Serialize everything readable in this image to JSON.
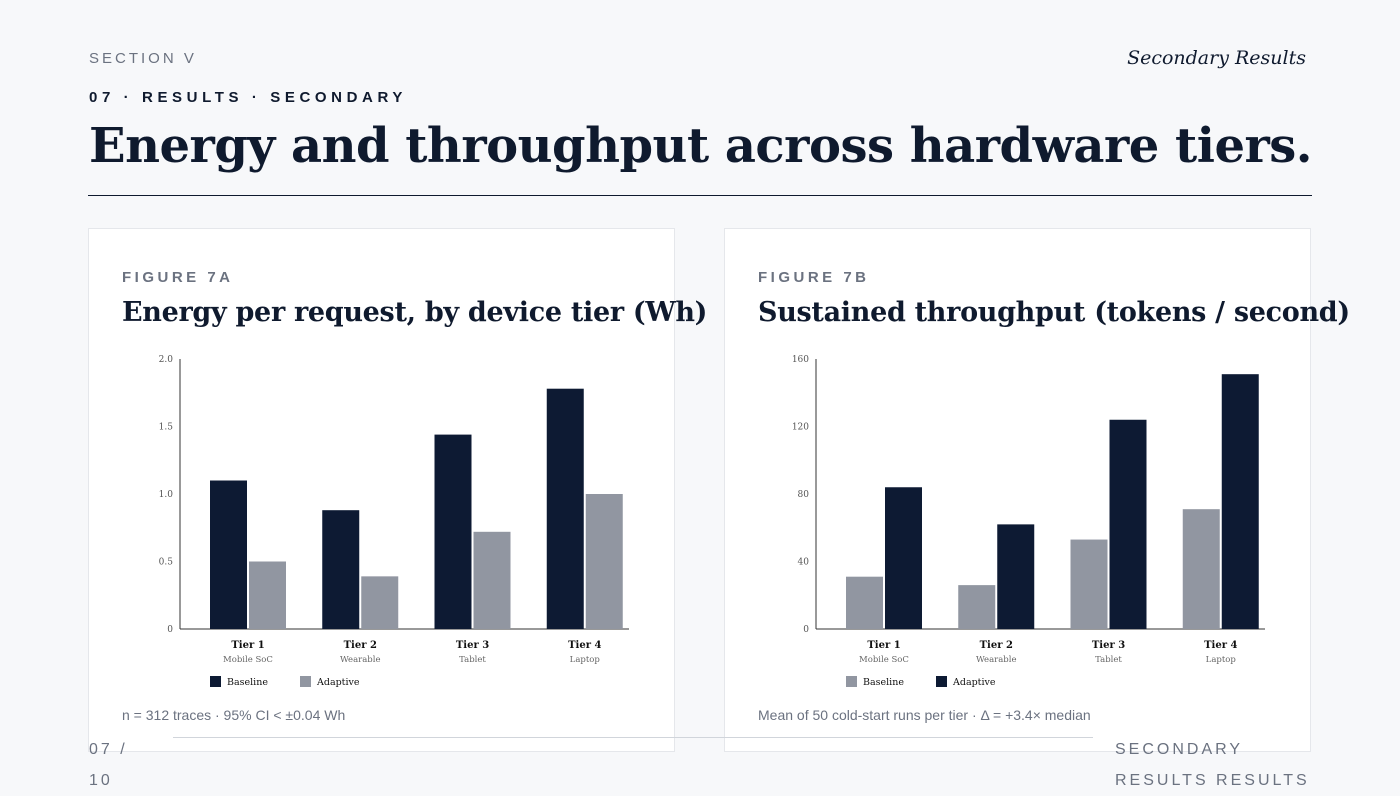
{
  "header": {
    "section": "SECTION V",
    "right": "Secondary Results",
    "kicker": "07 · RESULTS · SECONDARY",
    "title": "Energy and throughput across hardware tiers."
  },
  "colors": {
    "dark": "#0d1a33",
    "gray": "#9196a1"
  },
  "figure_a": {
    "label": "FIGURE 7A",
    "title": "Energy per request, by device tier (Wh)",
    "note": "n = 312 traces · 95% CI < ±0.04 Wh"
  },
  "figure_b": {
    "label": "FIGURE 7B",
    "title": "Sustained throughput (tokens / second)",
    "note": "Mean of 50 cold-start runs per tier · Δ = +3.4× median"
  },
  "footer": {
    "page": "07 / 10",
    "right": "SECONDARY RESULTS RESULTS"
  },
  "chart_data": [
    {
      "type": "bar",
      "title": "Energy per request, by device tier (Wh)",
      "categories": [
        "Tier 1",
        "Tier 2",
        "Tier 3",
        "Tier 4"
      ],
      "subcategories": [
        "Mobile SoC",
        "Wearable",
        "Tablet",
        "Laptop"
      ],
      "series": [
        {
          "name": "Baseline",
          "color": "#0d1a33",
          "values": [
            1.1,
            0.88,
            1.44,
            1.78
          ]
        },
        {
          "name": "Adaptive",
          "color": "#9196a1",
          "values": [
            0.5,
            0.39,
            0.72,
            1.0
          ]
        }
      ],
      "ylim": [
        0,
        2.0
      ],
      "yticks": [
        "0",
        "0.5",
        "1.0",
        "1.5",
        "2.0"
      ],
      "ytick_values": [
        0,
        0.5,
        1.0,
        1.5,
        2.0
      ],
      "legend": "bottom-left",
      "grid": false
    },
    {
      "type": "bar",
      "title": "Sustained throughput (tokens / second)",
      "categories": [
        "Tier 1",
        "Tier 2",
        "Tier 3",
        "Tier 4"
      ],
      "subcategories": [
        "Mobile SoC",
        "Wearable",
        "Tablet",
        "Laptop"
      ],
      "series": [
        {
          "name": "Baseline",
          "color": "#9196a1",
          "values": [
            31,
            26,
            53,
            71
          ]
        },
        {
          "name": "Adaptive",
          "color": "#0d1a33",
          "values": [
            84,
            62,
            124,
            151
          ]
        }
      ],
      "ylim": [
        0,
        160
      ],
      "yticks": [
        "0",
        "40",
        "80",
        "120",
        "160"
      ],
      "ytick_values": [
        0,
        40,
        80,
        120,
        160
      ],
      "legend": "bottom-left",
      "grid": false
    }
  ]
}
